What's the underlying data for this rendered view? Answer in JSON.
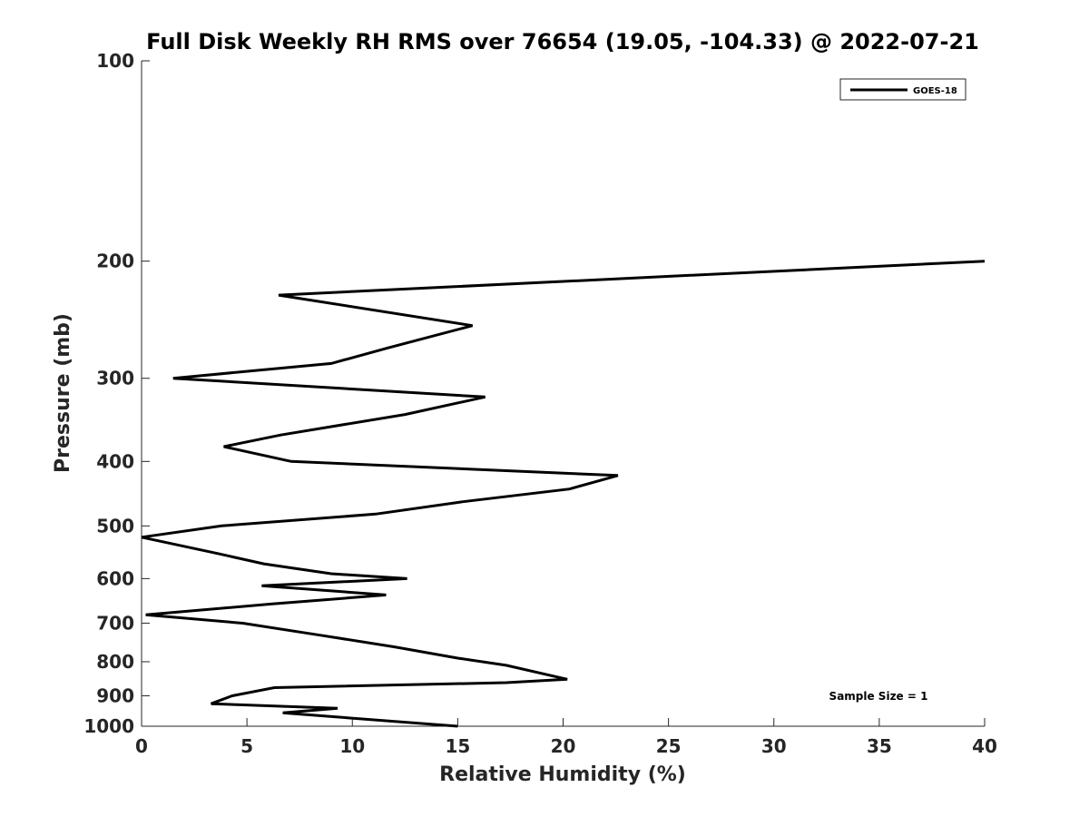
{
  "chart_data": {
    "type": "line",
    "title": "Full Disk Weekly RH RMS over 76654 (19.05, -104.33) @ 2022-07-21",
    "xlabel": "Relative Humidity (%)",
    "ylabel": "Pressure (mb)",
    "xlim": [
      0,
      40
    ],
    "ylim": [
      100,
      1000
    ],
    "y_scale": "log",
    "y_reversed": true,
    "xticks": [
      0,
      5,
      10,
      15,
      20,
      25,
      30,
      35,
      40
    ],
    "yticks": [
      100,
      200,
      300,
      400,
      500,
      600,
      700,
      800,
      900,
      1000
    ],
    "grid": false,
    "legend_position": "top-right",
    "annotation": "Sample Size = 1",
    "series": [
      {
        "name": "GOES-18",
        "color": "#000000",
        "points": [
          [
            40.0,
            200
          ],
          [
            6.5,
            225
          ],
          [
            15.7,
            250
          ],
          [
            11.7,
            270
          ],
          [
            9.0,
            285
          ],
          [
            1.5,
            300
          ],
          [
            16.3,
            320
          ],
          [
            12.5,
            340
          ],
          [
            6.6,
            365
          ],
          [
            3.9,
            380
          ],
          [
            7.1,
            400
          ],
          [
            22.6,
            420
          ],
          [
            20.3,
            440
          ],
          [
            15.2,
            460
          ],
          [
            11.1,
            480
          ],
          [
            3.8,
            500
          ],
          [
            0.0,
            520
          ],
          [
            3.6,
            550
          ],
          [
            5.8,
            570
          ],
          [
            9.0,
            590
          ],
          [
            12.6,
            600
          ],
          [
            5.7,
            615
          ],
          [
            11.6,
            635
          ],
          [
            6.2,
            655
          ],
          [
            0.2,
            680
          ],
          [
            4.8,
            700
          ],
          [
            8.5,
            730
          ],
          [
            12.0,
            760
          ],
          [
            15.0,
            790
          ],
          [
            17.3,
            810
          ],
          [
            20.2,
            850
          ],
          [
            17.3,
            860
          ],
          [
            6.3,
            875
          ],
          [
            4.3,
            900
          ],
          [
            3.3,
            925
          ],
          [
            9.3,
            940
          ],
          [
            6.7,
            955
          ],
          [
            15.0,
            1000
          ]
        ]
      }
    ]
  }
}
